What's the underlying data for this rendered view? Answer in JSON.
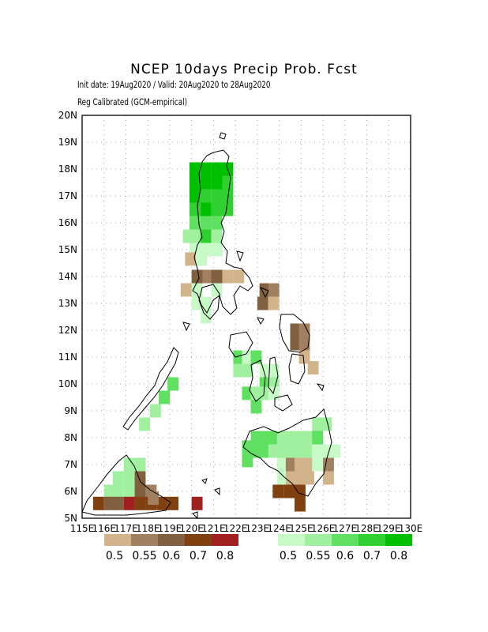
{
  "title": "NCEP 10days Precip Prob. Fcst",
  "subtitle_line1": "Init date: 19Aug2020 / Valid: 20Aug2020 to 28Aug2020",
  "subtitle_line2": "Reg Calibrated (GCM-empirical)",
  "map": {
    "lon_range": [
      115,
      130
    ],
    "lat_range": [
      5,
      20
    ],
    "lat_labels": [
      "5N",
      "6N",
      "7N",
      "8N",
      "9N",
      "10N",
      "11N",
      "12N",
      "13N",
      "14N",
      "15N",
      "16N",
      "17N",
      "18N",
      "19N",
      "20N"
    ],
    "lon_labels": [
      "115E",
      "116E",
      "117E",
      "118E",
      "119E",
      "120E",
      "121E",
      "122E",
      "123E",
      "124E",
      "125E",
      "126E",
      "127E",
      "128E",
      "129E",
      "130E"
    ],
    "grid": "dotted"
  },
  "legend_dry": {
    "labels": [
      "0.5",
      "0.55",
      "0.6",
      "0.7",
      "0.8"
    ],
    "colors": [
      "#d2b48c",
      "#a08060",
      "#806040",
      "#804010",
      "#a02020"
    ]
  },
  "legend_wet": {
    "labels": [
      "0.5",
      "0.55",
      "0.6",
      "0.7",
      "0.8"
    ],
    "colors": [
      "#c8fac8",
      "#a0f0a0",
      "#60e060",
      "#30d030",
      "#00c000"
    ]
  }
}
